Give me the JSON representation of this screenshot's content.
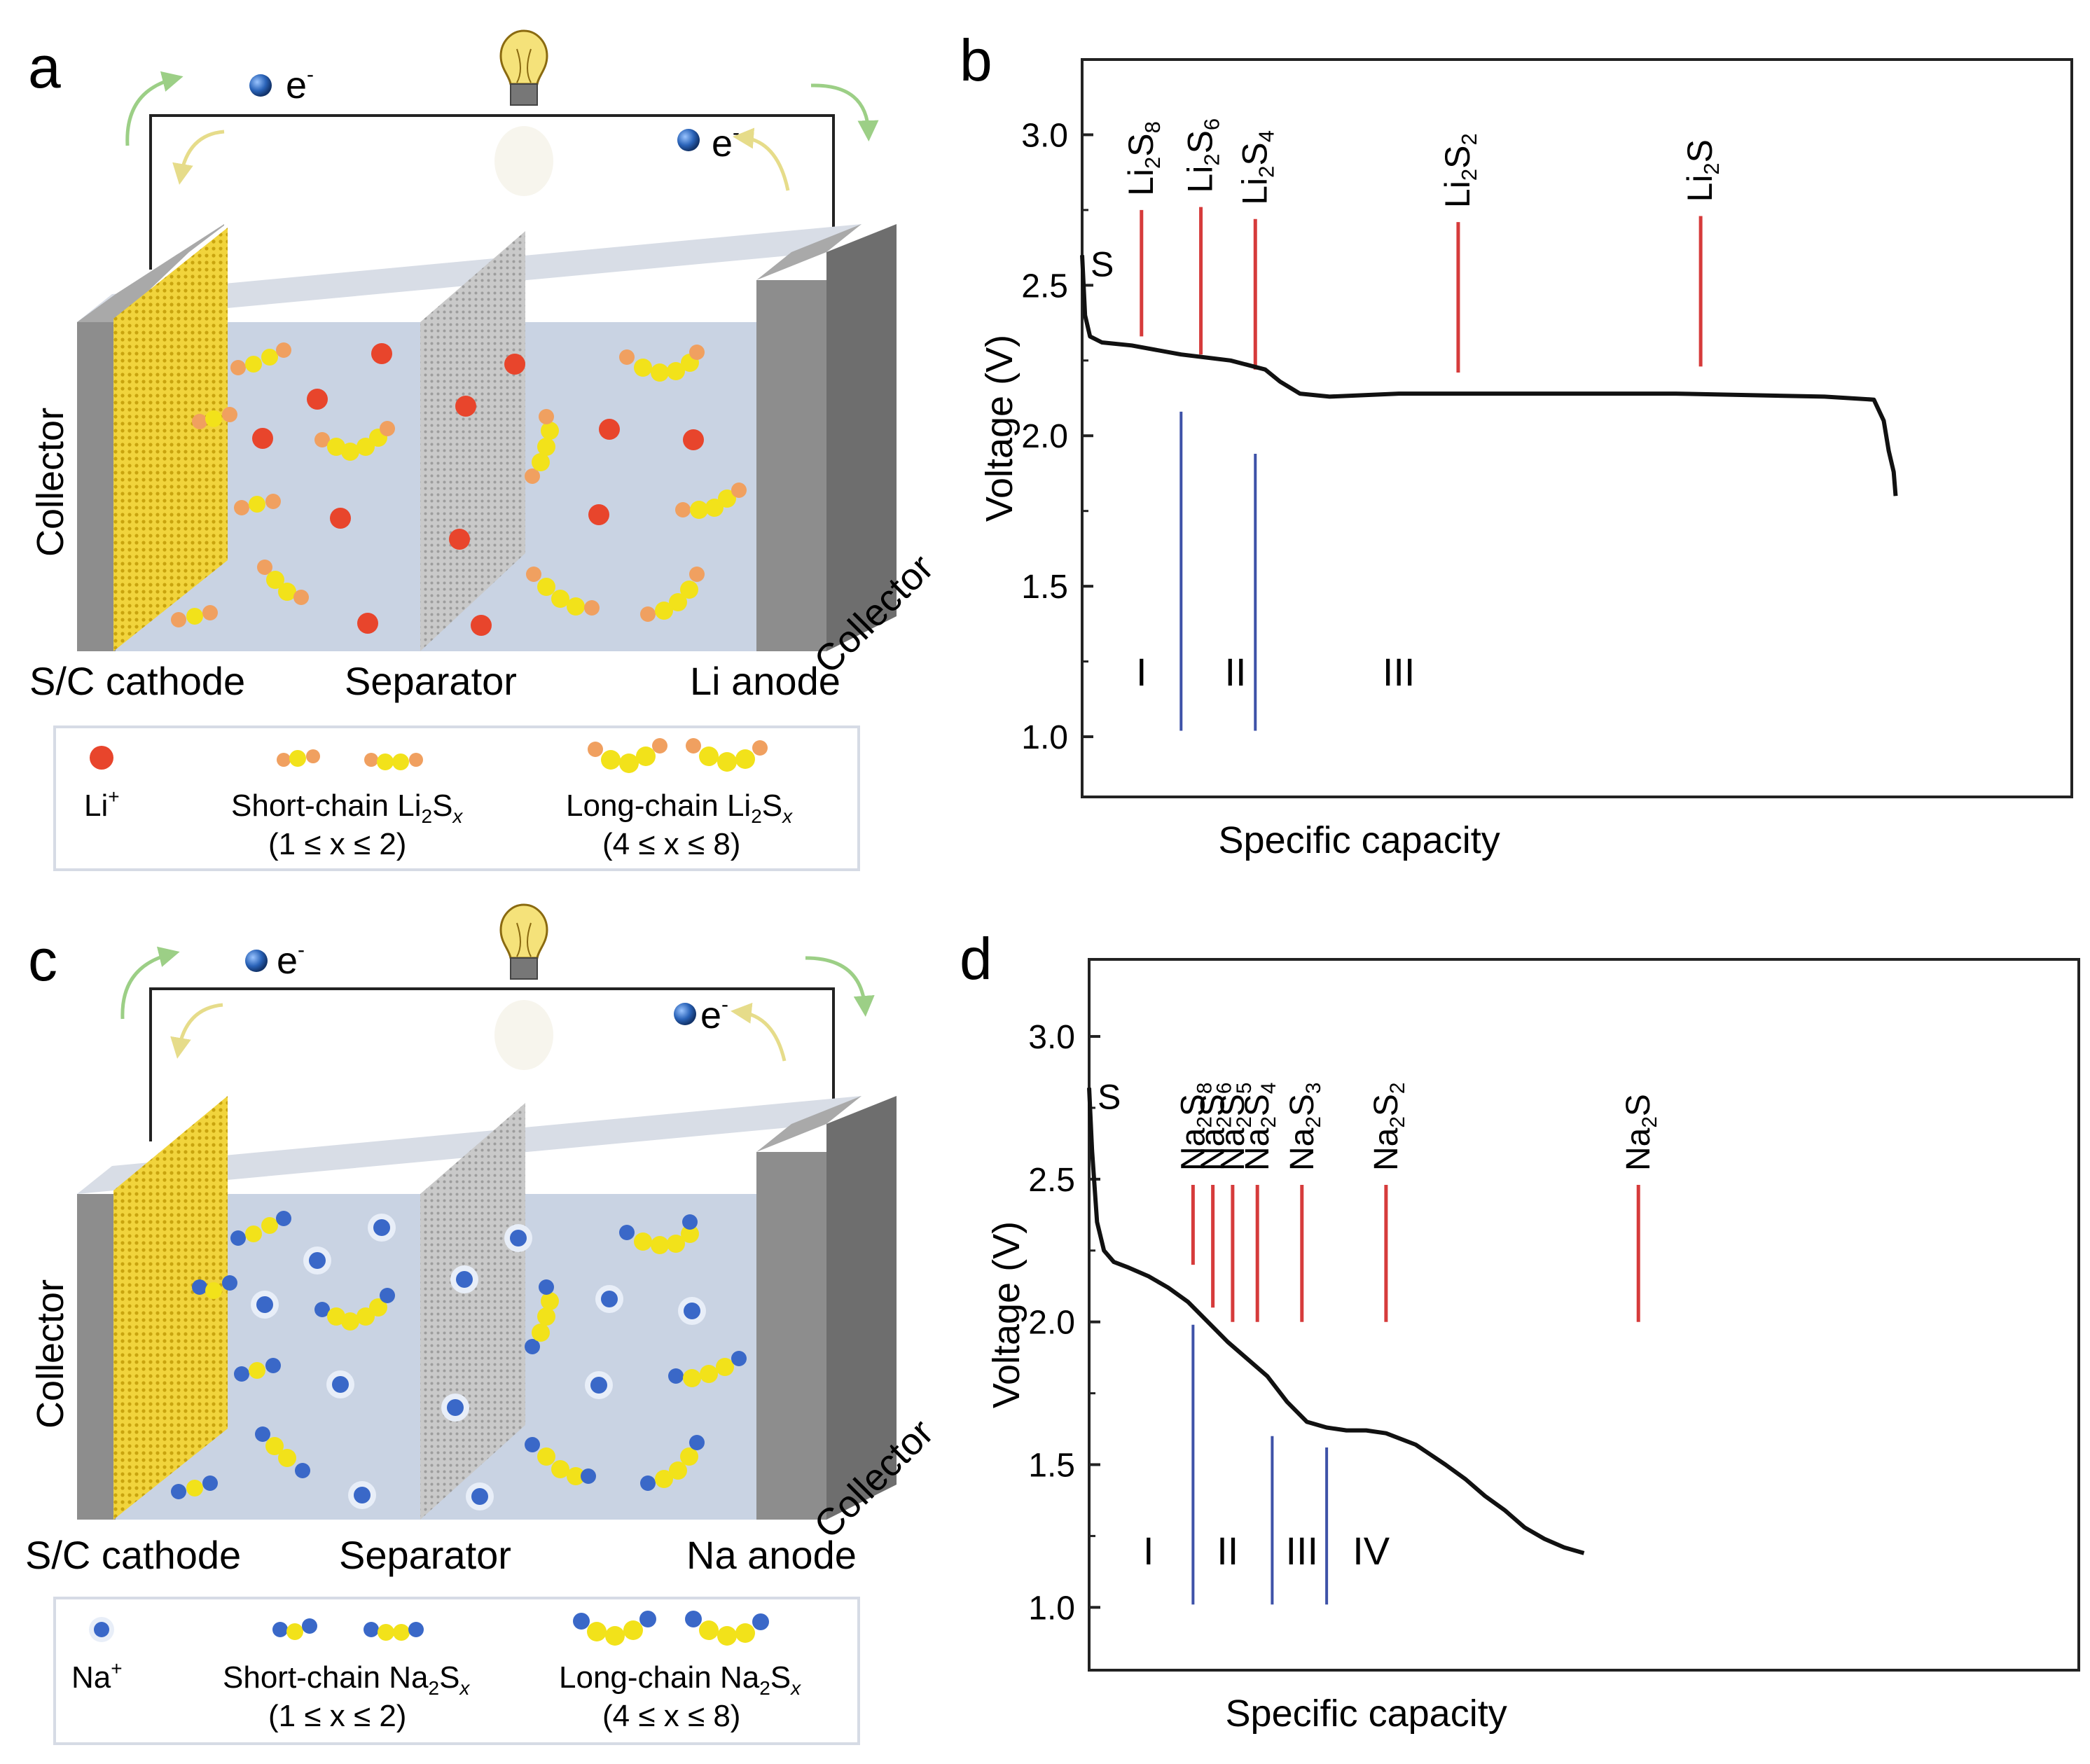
{
  "figure": {
    "panel_a": {
      "letter": "a",
      "electron": "e",
      "electron_sup": "-",
      "labels": {
        "collector_left": "Collector",
        "collector_right": "Collector",
        "cathode": "S/C cathode",
        "separator": "Separator",
        "anode": "Li anode"
      },
      "legend": {
        "ion": "Li",
        "ion_sup": "+",
        "short_chain": "Short-chain Li",
        "short_chain_sub": "2",
        "short_chain_tail": "S",
        "short_chain_x": "x",
        "short_range": "(1 ≤ x ≤ 2)",
        "long_chain": "Long-chain Li",
        "long_chain_sub": "2",
        "long_chain_tail": "S",
        "long_chain_x": "x",
        "long_range": "(4 ≤ x ≤ 8)"
      },
      "ion_color": "#e8452c",
      "chain_end_color": "#f0a060"
    },
    "panel_c": {
      "letter": "c",
      "electron": "e",
      "electron_sup": "-",
      "labels": {
        "collector_left": "Collector",
        "collector_right": "Collector",
        "cathode": "S/C cathode",
        "separator": "Separator",
        "anode": "Na anode"
      },
      "legend": {
        "ion": "Na",
        "ion_sup": "+",
        "short_chain": "Short-chain Na",
        "short_chain_sub": "2",
        "short_chain_tail": "S",
        "short_chain_x": "x",
        "short_range": "(1 ≤ x ≤ 2)",
        "long_chain": "Long-chain Na",
        "long_chain_sub": "2",
        "long_chain_tail": "S",
        "long_chain_x": "x",
        "long_range": "(4 ≤ x ≤ 8)"
      },
      "ion_color": "#3a68c8",
      "chain_end_color": "#3a68c8"
    }
  },
  "colors": {
    "species_line": "#d63b3b",
    "region_line": "#3e52a8",
    "curve": "#111111",
    "sulfur": "#f2e21a",
    "electrolyte": "#cfd8e6",
    "collector": "#8a8a8a",
    "cathode": "#f0d23a"
  },
  "chart_data": [
    {
      "panel": "b",
      "type": "line",
      "xlabel": "Specific capacity",
      "ylabel": "Voltage (V)",
      "ylim": [
        0.8,
        3.25
      ],
      "xlim": [
        0,
        100
      ],
      "yticks": [
        "3.0",
        "2.5",
        "2.0",
        "1.5",
        "1.0"
      ],
      "ytick_values": [
        3.0,
        2.5,
        2.0,
        1.5,
        1.0
      ],
      "curve_label": "S",
      "series": [
        {
          "name": "discharge",
          "x": [
            0,
            0.3,
            0.8,
            2,
            5,
            10,
            15,
            18.5,
            20,
            22,
            25,
            32,
            45,
            60,
            75,
            80,
            81,
            81.5,
            82,
            82.2
          ],
          "y": [
            2.6,
            2.4,
            2.33,
            2.31,
            2.3,
            2.27,
            2.25,
            2.22,
            2.18,
            2.14,
            2.13,
            2.14,
            2.14,
            2.14,
            2.13,
            2.12,
            2.05,
            1.95,
            1.88,
            1.8
          ]
        }
      ],
      "species": [
        {
          "base": "Li",
          "sub": "2",
          "tail": "S",
          "tail_sub": "8",
          "x": 6,
          "y_top": 2.75,
          "y_bottom": 2.33
        },
        {
          "base": "Li",
          "sub": "2",
          "tail": "S",
          "tail_sub": "6",
          "x": 12,
          "y_top": 2.76,
          "y_bottom": 2.27
        },
        {
          "base": "Li",
          "sub": "2",
          "tail": "S",
          "tail_sub": "4",
          "x": 17.5,
          "y_top": 2.72,
          "y_bottom": 2.22
        },
        {
          "base": "Li",
          "sub": "2",
          "tail": "S",
          "tail_sub": "2",
          "x": 38,
          "y_top": 2.71,
          "y_bottom": 2.21
        },
        {
          "base": "Li",
          "sub": "2",
          "tail": "S",
          "tail_sub": "",
          "x": 62.5,
          "y_top": 2.73,
          "y_bottom": 2.23
        }
      ],
      "regions": [
        {
          "x": 10,
          "y_top": 2.08,
          "y_bottom": 1.02
        },
        {
          "x": 17.5,
          "y_top": 1.94,
          "y_bottom": 1.02
        }
      ],
      "region_labels": [
        {
          "label": "I",
          "x": 6,
          "y": 1.17
        },
        {
          "label": "II",
          "x": 15.5,
          "y": 1.17
        },
        {
          "label": "III",
          "x": 32,
          "y": 1.17
        }
      ]
    },
    {
      "panel": "d",
      "type": "line",
      "xlabel": "Specific capacity",
      "ylabel": "Voltage (V)",
      "ylim": [
        0.78,
        3.27
      ],
      "xlim": [
        0,
        100
      ],
      "yticks": [
        "3.0",
        "2.5",
        "2.0",
        "1.5",
        "1.0"
      ],
      "ytick_values": [
        3.0,
        2.5,
        2.0,
        1.5,
        1.0
      ],
      "curve_label": "S",
      "series": [
        {
          "name": "discharge",
          "x": [
            0,
            0.3,
            0.8,
            1.5,
            2.5,
            4,
            6,
            8,
            10,
            12,
            14,
            16,
            18,
            20,
            22,
            24,
            26,
            28,
            30,
            33,
            36,
            38,
            40,
            42,
            44,
            46,
            48,
            50
          ],
          "y": [
            2.82,
            2.6,
            2.35,
            2.25,
            2.21,
            2.19,
            2.16,
            2.12,
            2.07,
            2.0,
            1.93,
            1.87,
            1.81,
            1.72,
            1.65,
            1.63,
            1.62,
            1.62,
            1.61,
            1.57,
            1.5,
            1.45,
            1.39,
            1.34,
            1.28,
            1.24,
            1.21,
            1.19
          ]
        }
      ],
      "species": [
        {
          "base": "Na",
          "sub": "2",
          "tail": "S",
          "tail_sub": "8",
          "x": 10.5,
          "y_top": 2.48,
          "y_bottom": 2.2
        },
        {
          "base": "Na",
          "sub": "2",
          "tail": "S",
          "tail_sub": "6",
          "x": 12.5,
          "y_top": 2.48,
          "y_bottom": 2.05
        },
        {
          "base": "Na",
          "sub": "2",
          "tail": "S",
          "tail_sub": "5",
          "x": 14.5,
          "y_top": 2.48,
          "y_bottom": 2.0
        },
        {
          "base": "Na",
          "sub": "2",
          "tail": "S",
          "tail_sub": "4",
          "x": 17,
          "y_top": 2.48,
          "y_bottom": 2.0
        },
        {
          "base": "Na",
          "sub": "2",
          "tail": "S",
          "tail_sub": "3",
          "x": 21.5,
          "y_top": 2.48,
          "y_bottom": 2.0
        },
        {
          "base": "Na",
          "sub": "2",
          "tail": "S",
          "tail_sub": "2",
          "x": 30,
          "y_top": 2.48,
          "y_bottom": 2.0
        },
        {
          "base": "Na",
          "sub": "2",
          "tail": "S",
          "tail_sub": "",
          "x": 55.5,
          "y_top": 2.48,
          "y_bottom": 2.0
        }
      ],
      "regions": [
        {
          "x": 10.5,
          "y_top": 1.99,
          "y_bottom": 1.01
        },
        {
          "x": 18.5,
          "y_top": 1.6,
          "y_bottom": 1.01
        },
        {
          "x": 24,
          "y_top": 1.56,
          "y_bottom": 1.01
        }
      ],
      "region_labels": [
        {
          "label": "I",
          "x": 6,
          "y": 1.15
        },
        {
          "label": "II",
          "x": 14,
          "y": 1.15
        },
        {
          "label": "III",
          "x": 21.5,
          "y": 1.15
        },
        {
          "label": "IV",
          "x": 28.5,
          "y": 1.15
        }
      ]
    }
  ]
}
